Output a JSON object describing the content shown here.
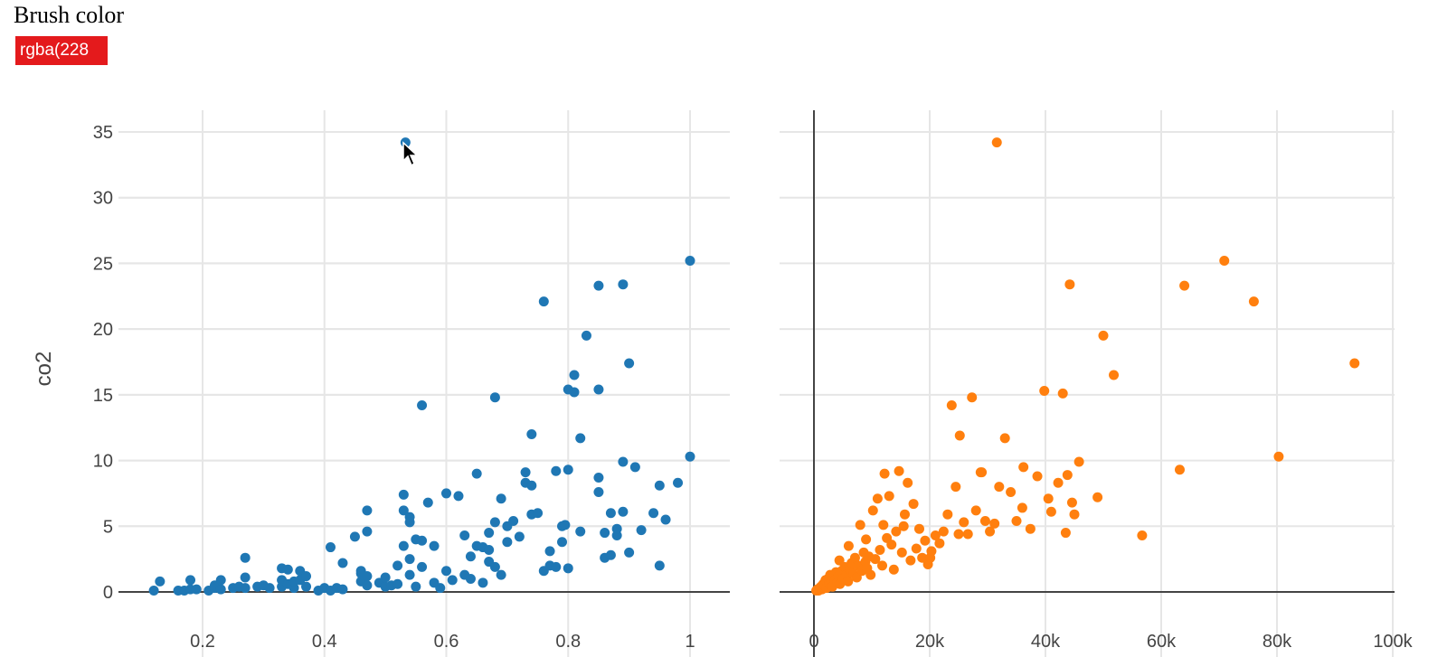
{
  "controls": {
    "brush_label": "Brush color",
    "brush_value": "rgba(228"
  },
  "chart_data": [
    {
      "type": "scatter",
      "ylabel": "co2",
      "xlabel": "",
      "xlim": [
        0.1,
        1.06
      ],
      "ylim": [
        -1,
        36
      ],
      "xticks": [
        0.2,
        0.4,
        0.6,
        0.8,
        1
      ],
      "xtick_labels": [
        "0.2",
        "0.4",
        "0.6",
        "0.8",
        "1"
      ],
      "yticks": [
        0,
        5,
        10,
        15,
        20,
        25,
        30,
        35
      ],
      "ytick_labels": [
        "0",
        "5",
        "10",
        "15",
        "20",
        "25",
        "30",
        "35"
      ],
      "grid": true,
      "color": "#1f77b4",
      "points": [
        [
          0.12,
          0.1
        ],
        [
          0.13,
          0.8
        ],
        [
          0.16,
          0.1
        ],
        [
          0.17,
          0.1
        ],
        [
          0.18,
          0.2
        ],
        [
          0.18,
          0.9
        ],
        [
          0.19,
          0.2
        ],
        [
          0.21,
          0.1
        ],
        [
          0.22,
          0.3
        ],
        [
          0.22,
          0.5
        ],
        [
          0.23,
          0.2
        ],
        [
          0.23,
          0.9
        ],
        [
          0.25,
          0.3
        ],
        [
          0.26,
          0.4
        ],
        [
          0.27,
          0.3
        ],
        [
          0.27,
          1.1
        ],
        [
          0.27,
          2.6
        ],
        [
          0.29,
          0.4
        ],
        [
          0.3,
          0.5
        ],
        [
          0.31,
          0.3
        ],
        [
          0.33,
          0.4
        ],
        [
          0.33,
          0.9
        ],
        [
          0.33,
          1.8
        ],
        [
          0.34,
          1.7
        ],
        [
          0.34,
          0.6
        ],
        [
          0.35,
          0.3
        ],
        [
          0.35,
          0.8
        ],
        [
          0.36,
          0.9
        ],
        [
          0.36,
          1.6
        ],
        [
          0.37,
          1.2
        ],
        [
          0.37,
          0.4
        ],
        [
          0.39,
          0.1
        ],
        [
          0.4,
          0.3
        ],
        [
          0.41,
          0.1
        ],
        [
          0.41,
          3.4
        ],
        [
          0.42,
          0.3
        ],
        [
          0.43,
          0.2
        ],
        [
          0.43,
          2.2
        ],
        [
          0.45,
          4.2
        ],
        [
          0.46,
          0.8
        ],
        [
          0.46,
          1.4
        ],
        [
          0.46,
          1.6
        ],
        [
          0.47,
          0.5
        ],
        [
          0.47,
          1.2
        ],
        [
          0.47,
          4.6
        ],
        [
          0.47,
          6.2
        ],
        [
          0.49,
          0.7
        ],
        [
          0.5,
          0.4
        ],
        [
          0.5,
          1.1
        ],
        [
          0.51,
          0.5
        ],
        [
          0.52,
          2.0
        ],
        [
          0.52,
          0.6
        ],
        [
          0.53,
          7.4
        ],
        [
          0.53,
          6.2
        ],
        [
          0.53,
          3.5
        ],
        [
          0.54,
          5.3
        ],
        [
          0.54,
          5.7
        ],
        [
          0.54,
          1.3
        ],
        [
          0.54,
          2.5
        ],
        [
          0.55,
          4.0
        ],
        [
          0.55,
          0.4
        ],
        [
          0.56,
          3.9
        ],
        [
          0.56,
          1.9
        ],
        [
          0.56,
          14.2
        ],
        [
          0.57,
          6.8
        ],
        [
          0.58,
          3.5
        ],
        [
          0.58,
          0.7
        ],
        [
          0.59,
          0.3
        ],
        [
          0.6,
          7.5
        ],
        [
          0.6,
          1.6
        ],
        [
          0.61,
          0.9
        ],
        [
          0.62,
          7.3
        ],
        [
          0.63,
          1.3
        ],
        [
          0.63,
          4.3
        ],
        [
          0.64,
          2.7
        ],
        [
          0.64,
          1.0
        ],
        [
          0.65,
          9.0
        ],
        [
          0.65,
          3.5
        ],
        [
          0.66,
          0.7
        ],
        [
          0.66,
          3.4
        ],
        [
          0.67,
          4.5
        ],
        [
          0.67,
          2.3
        ],
        [
          0.67,
          3.2
        ],
        [
          0.68,
          5.3
        ],
        [
          0.68,
          1.9
        ],
        [
          0.68,
          14.8
        ],
        [
          0.69,
          7.1
        ],
        [
          0.69,
          1.3
        ],
        [
          0.7,
          5.0
        ],
        [
          0.7,
          3.8
        ],
        [
          0.71,
          5.4
        ],
        [
          0.72,
          4.2
        ],
        [
          0.73,
          9.1
        ],
        [
          0.73,
          8.3
        ],
        [
          0.74,
          8.1
        ],
        [
          0.74,
          12.0
        ],
        [
          0.74,
          5.9
        ],
        [
          0.75,
          6.0
        ],
        [
          0.76,
          22.1
        ],
        [
          0.76,
          1.6
        ],
        [
          0.77,
          3.1
        ],
        [
          0.77,
          2.0
        ],
        [
          0.78,
          1.9
        ],
        [
          0.78,
          9.2
        ],
        [
          0.79,
          5.0
        ],
        [
          0.79,
          3.8
        ],
        [
          0.8,
          9.3
        ],
        [
          0.81,
          15.2
        ],
        [
          0.81,
          16.5
        ],
        [
          0.82,
          11.7
        ],
        [
          0.82,
          4.6
        ],
        [
          0.83,
          19.5
        ],
        [
          0.85,
          23.3
        ],
        [
          0.85,
          15.4
        ],
        [
          0.85,
          7.6
        ],
        [
          0.85,
          8.7
        ],
        [
          0.86,
          2.6
        ],
        [
          0.86,
          4.5
        ],
        [
          0.87,
          2.8
        ],
        [
          0.87,
          6.0
        ],
        [
          0.88,
          4.3
        ],
        [
          0.88,
          4.8
        ],
        [
          0.89,
          23.4
        ],
        [
          0.89,
          6.1
        ],
        [
          0.89,
          9.9
        ],
        [
          0.9,
          17.4
        ],
        [
          0.9,
          3.0
        ],
        [
          0.91,
          9.5
        ],
        [
          0.92,
          4.7
        ],
        [
          0.94,
          6.0
        ],
        [
          0.95,
          2.0
        ],
        [
          0.95,
          8.1
        ],
        [
          0.96,
          5.5
        ],
        [
          0.98,
          8.3
        ],
        [
          1.0,
          25.2
        ],
        [
          1.0,
          10.3
        ],
        [
          0.8,
          15.4
        ],
        [
          0.8,
          1.8
        ],
        [
          0.795,
          5.1
        ],
        [
          0.533,
          34.2
        ]
      ]
    },
    {
      "type": "scatter",
      "ylabel": "",
      "xlabel": "",
      "xlim": [
        0,
        100000
      ],
      "ylim": [
        -1,
        36
      ],
      "xticks": [
        0,
        20000,
        40000,
        60000,
        80000,
        100000
      ],
      "xtick_labels": [
        "0",
        "20k",
        "40k",
        "60k",
        "80k",
        "100k"
      ],
      "grid": true,
      "color": "#ff7f0e",
      "points": [
        [
          400,
          0.1
        ],
        [
          600,
          0.2
        ],
        [
          800,
          0.1
        ],
        [
          1000,
          0.3
        ],
        [
          1200,
          0.4
        ],
        [
          1400,
          0.2
        ],
        [
          1600,
          0.6
        ],
        [
          1800,
          0.5
        ],
        [
          2000,
          0.9
        ],
        [
          2200,
          0.3
        ],
        [
          2400,
          1.0
        ],
        [
          2600,
          0.6
        ],
        [
          2800,
          1.3
        ],
        [
          3000,
          0.8
        ],
        [
          3200,
          0.4
        ],
        [
          3400,
          1.1
        ],
        [
          3600,
          0.9
        ],
        [
          3800,
          1.5
        ],
        [
          4000,
          0.7
        ],
        [
          4200,
          1.2
        ],
        [
          4500,
          0.6
        ],
        [
          4800,
          1.6
        ],
        [
          5000,
          1.0
        ],
        [
          5300,
          1.9
        ],
        [
          5600,
          1.3
        ],
        [
          5900,
          0.8
        ],
        [
          6200,
          1.7
        ],
        [
          6500,
          2.2
        ],
        [
          6800,
          1.4
        ],
        [
          7100,
          2.6
        ],
        [
          7400,
          1.1
        ],
        [
          7700,
          2.0
        ],
        [
          8000,
          5.1
        ],
        [
          8300,
          1.6
        ],
        [
          8600,
          3.0
        ],
        [
          8900,
          2.3
        ],
        [
          9200,
          1.8
        ],
        [
          9500,
          2.7
        ],
        [
          9800,
          1.3
        ],
        [
          10200,
          6.2
        ],
        [
          10600,
          2.5
        ],
        [
          11000,
          7.1
        ],
        [
          11400,
          3.2
        ],
        [
          11800,
          2.0
        ],
        [
          12200,
          9.0
        ],
        [
          12600,
          4.1
        ],
        [
          13000,
          7.3
        ],
        [
          13400,
          3.6
        ],
        [
          13800,
          1.7
        ],
        [
          14200,
          4.6
        ],
        [
          14700,
          9.2
        ],
        [
          15200,
          3.0
        ],
        [
          15700,
          5.9
        ],
        [
          16200,
          8.3
        ],
        [
          16700,
          2.4
        ],
        [
          17200,
          6.7
        ],
        [
          17700,
          3.3
        ],
        [
          18200,
          4.8
        ],
        [
          18700,
          2.6
        ],
        [
          19200,
          3.9
        ],
        [
          19700,
          2.1
        ],
        [
          20300,
          3.1
        ],
        [
          21000,
          4.3
        ],
        [
          21700,
          3.7
        ],
        [
          22400,
          4.6
        ],
        [
          23100,
          5.9
        ],
        [
          23800,
          14.2
        ],
        [
          24500,
          8.0
        ],
        [
          25200,
          11.9
        ],
        [
          25900,
          5.3
        ],
        [
          26600,
          4.4
        ],
        [
          27300,
          14.8
        ],
        [
          28000,
          6.2
        ],
        [
          28800,
          9.1
        ],
        [
          29600,
          5.4
        ],
        [
          30400,
          4.6
        ],
        [
          31200,
          5.2
        ],
        [
          31600,
          34.2
        ],
        [
          32000,
          8.0
        ],
        [
          33000,
          11.7
        ],
        [
          34000,
          7.6
        ],
        [
          35000,
          5.4
        ],
        [
          36200,
          9.5
        ],
        [
          37400,
          4.8
        ],
        [
          38600,
          8.8
        ],
        [
          39800,
          15.3
        ],
        [
          41000,
          6.1
        ],
        [
          42200,
          8.3
        ],
        [
          43000,
          15.1
        ],
        [
          43800,
          8.9
        ],
        [
          44200,
          23.4
        ],
        [
          44600,
          6.8
        ],
        [
          45000,
          5.9
        ],
        [
          45800,
          9.9
        ],
        [
          49000,
          7.2
        ],
        [
          50000,
          19.5
        ],
        [
          51800,
          16.5
        ],
        [
          56700,
          4.3
        ],
        [
          63200,
          9.3
        ],
        [
          64000,
          23.3
        ],
        [
          70900,
          25.2
        ],
        [
          76000,
          22.1
        ],
        [
          80300,
          10.3
        ],
        [
          93400,
          17.4
        ],
        [
          12000,
          5.1
        ],
        [
          15500,
          5.0
        ],
        [
          20100,
          2.6
        ],
        [
          25000,
          4.4
        ],
        [
          29000,
          9.1
        ],
        [
          36000,
          6.4
        ],
        [
          40500,
          7.1
        ],
        [
          43500,
          4.5
        ],
        [
          9000,
          4.0
        ],
        [
          6000,
          3.5
        ],
        [
          4400,
          2.4
        ]
      ]
    }
  ]
}
